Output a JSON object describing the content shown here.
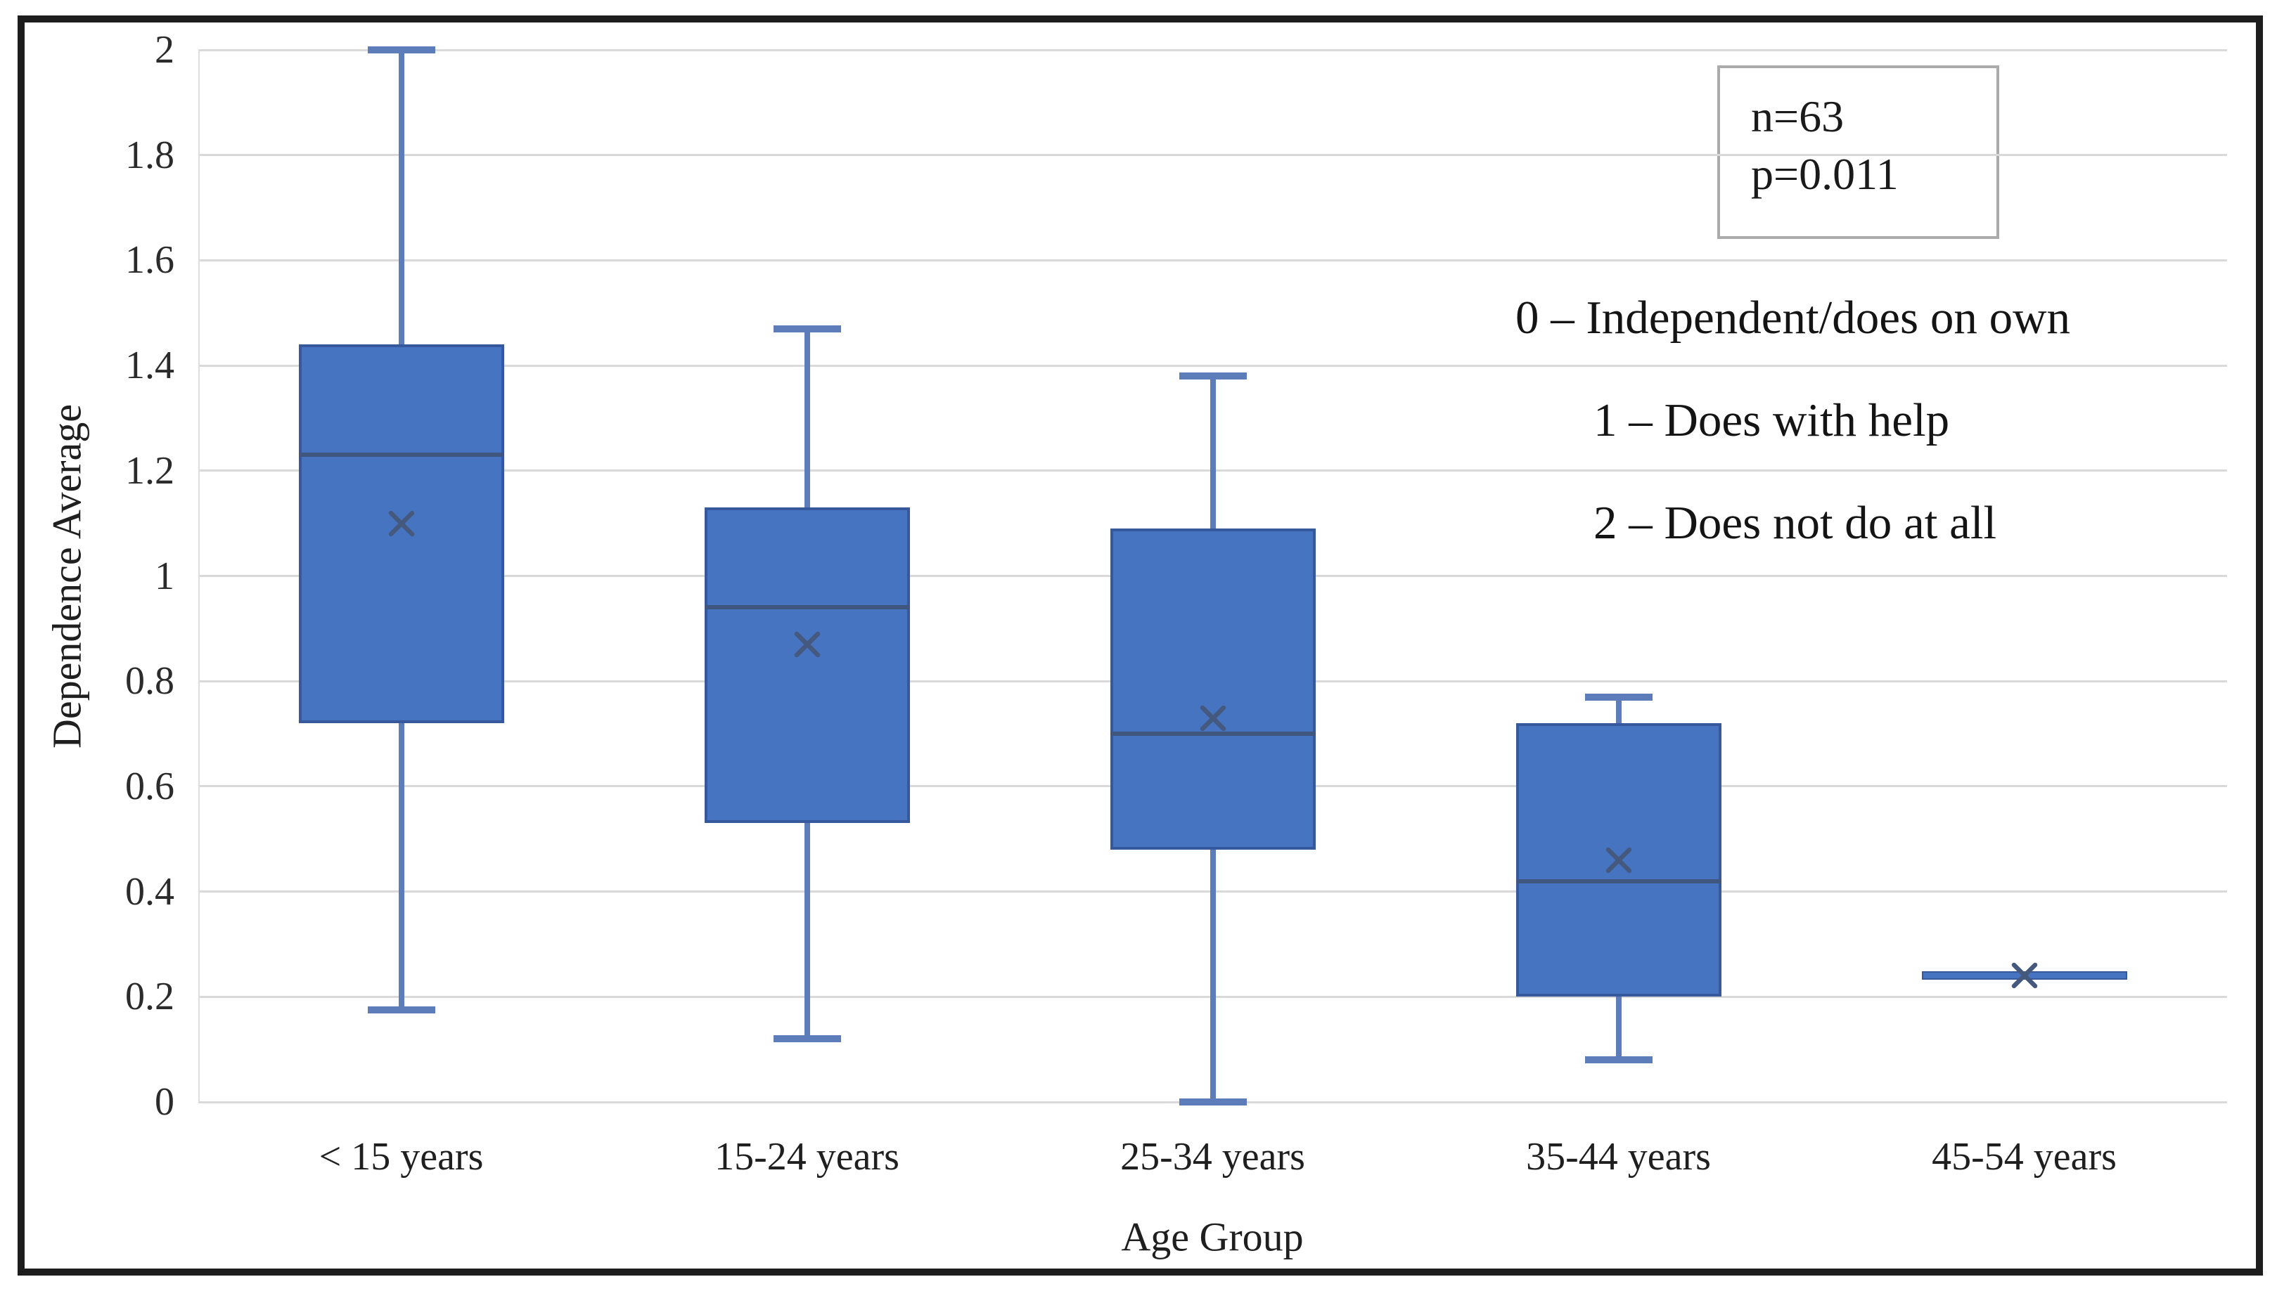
{
  "chart_data": {
    "type": "boxplot",
    "title": "",
    "xlabel": "Age Group",
    "ylabel": "Dependence Average",
    "ylim": [
      0,
      2
    ],
    "y_tick_labels": [
      "2",
      "1.8",
      "1.6",
      "1.4",
      "1.2",
      "1",
      "0.8",
      "0.6",
      "0.4",
      "0.2",
      "0"
    ],
    "grid": true,
    "legend_position": "right-inside",
    "categories": [
      "< 15 years",
      "15-24 years",
      "25-34 years",
      "35-44 years",
      "45-54 years"
    ],
    "series": [
      {
        "category": "< 15 years",
        "whisker_low": 0.175,
        "q1": 0.72,
        "median": 1.23,
        "q3": 1.44,
        "whisker_high": 2.0,
        "mean": 1.1
      },
      {
        "category": "15-24 years",
        "whisker_low": 0.12,
        "q1": 0.53,
        "median": 0.94,
        "q3": 1.13,
        "whisker_high": 1.47,
        "mean": 0.87
      },
      {
        "category": "25-34 years",
        "whisker_low": 0.0,
        "q1": 0.48,
        "median": 0.7,
        "q3": 1.09,
        "whisker_high": 1.38,
        "mean": 0.73
      },
      {
        "category": "35-44 years",
        "whisker_low": 0.08,
        "q1": 0.2,
        "median": 0.42,
        "q3": 0.72,
        "whisker_high": 0.77,
        "mean": 0.46
      },
      {
        "category": "45-54 years",
        "whisker_low": 0.24,
        "q1": 0.24,
        "median": 0.24,
        "q3": 0.24,
        "whisker_high": 0.24,
        "mean": 0.24
      }
    ],
    "annotation_box": {
      "lines": [
        "n=63",
        "p=0.011"
      ]
    },
    "value_legend": [
      "0 – Independent/does on own",
      "1 – Does with help",
      "2 – Does not do at all"
    ]
  },
  "colors": {
    "box_fill": "#4674c1",
    "box_border": "#35599c",
    "whisker": "#5d7dba",
    "median": "#3f567f",
    "mean_marker": "#45597e",
    "gridline": "#d9d9d9",
    "frame": "#1d1d1d",
    "text": "#262626",
    "annotation_border": "#ababab"
  }
}
